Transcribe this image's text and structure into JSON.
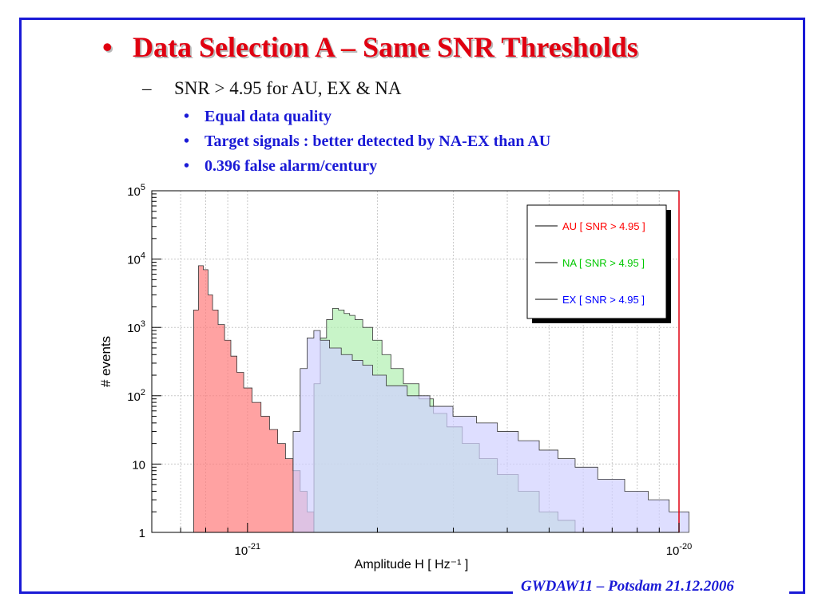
{
  "slide": {
    "title": "Data Selection A – Same SNR Thresholds",
    "subtitle": "SNR > 4.95 for AU, EX & NA",
    "bullets": [
      "Equal data quality",
      "Target signals : better detected by NA-EX than AU",
      "0.396 false alarm/century"
    ],
    "footer": "GWDAW11 – Potsdam 21.12.2006",
    "title_bullet": "•",
    "sub_dash": "–",
    "bullet_dot": "•"
  },
  "colors": {
    "frame": "#1a1ad6",
    "title": "#e00010",
    "bullet_text": "#1a1ad6",
    "au": "#ff0000",
    "na": "#00c800",
    "ex": "#0000ff"
  },
  "chart_data": {
    "type": "histogram",
    "xlabel": "Amplitude H [ Hz⁻¹ ]",
    "ylabel": "# events",
    "x_scale": "log",
    "y_scale": "log",
    "xlim": [
      6e-22,
      1e-20
    ],
    "ylim": [
      1,
      100000
    ],
    "grid": true,
    "legend_position": "top-right",
    "x_ticks": [
      {
        "value": 1e-21,
        "base": "10",
        "exp": "-21"
      },
      {
        "value": 1e-20,
        "base": "10",
        "exp": "-20"
      }
    ],
    "y_ticks": [
      {
        "value": 1,
        "base": "1",
        "exp": ""
      },
      {
        "value": 10,
        "base": "10",
        "exp": ""
      },
      {
        "value": 100,
        "base": "10",
        "exp": "2"
      },
      {
        "value": 1000,
        "base": "10",
        "exp": "3"
      },
      {
        "value": 10000,
        "base": "10",
        "exp": "4"
      },
      {
        "value": 100000,
        "base": "10",
        "exp": "5"
      }
    ],
    "series": [
      {
        "name": "AU [ SNR > 4.95 ]",
        "color": "#ff0000",
        "fill": "#ff7a7a",
        "x": [
          7.6e-22,
          7.8e-22,
          8e-22,
          8.2e-22,
          8.4e-22,
          8.7e-22,
          9e-22,
          9.3e-22,
          9.6e-22,
          1e-21,
          1.05e-21,
          1.1e-21,
          1.15e-21,
          1.2e-21,
          1.25e-21,
          1.3e-21,
          1.35e-21,
          1.4e-21,
          1.45e-21
        ],
        "values": [
          1800,
          8000,
          7000,
          3000,
          1800,
          1100,
          650,
          380,
          220,
          130,
          80,
          50,
          32,
          20,
          12,
          8,
          4,
          2,
          1
        ]
      },
      {
        "name": "NA [ SNR > 4.95 ]",
        "color": "#00c800",
        "fill": "#b0f0b0",
        "x": [
          1.45e-21,
          1.5e-21,
          1.55e-21,
          1.6e-21,
          1.65e-21,
          1.7e-21,
          1.75e-21,
          1.8e-21,
          1.9e-21,
          2e-21,
          2.1e-21,
          2.2e-21,
          2.4e-21,
          2.6e-21,
          2.8e-21,
          3e-21,
          3.3e-21,
          3.6e-21,
          4e-21,
          4.5e-21,
          5e-21,
          5.5e-21,
          6e-21
        ],
        "values": [
          150,
          700,
          1300,
          1900,
          1800,
          1600,
          1500,
          1300,
          1000,
          650,
          400,
          250,
          150,
          90,
          55,
          35,
          20,
          12,
          7,
          4,
          2,
          1.5,
          1
        ]
      },
      {
        "name": "EX [ SNR > 4.95 ]",
        "color": "#0000ff",
        "fill": "#d0d0ff",
        "x": [
          1.3e-21,
          1.35e-21,
          1.4e-21,
          1.45e-21,
          1.5e-21,
          1.6e-21,
          1.7e-21,
          1.8e-21,
          1.9e-21,
          2e-21,
          2.2e-21,
          2.5e-21,
          2.8e-21,
          3.2e-21,
          3.6e-21,
          4e-21,
          4.5e-21,
          5e-21,
          5.5e-21,
          6e-21,
          7e-21,
          8e-21,
          9e-21,
          1e-20
        ],
        "values": [
          30,
          250,
          700,
          900,
          650,
          500,
          400,
          330,
          280,
          200,
          140,
          100,
          70,
          50,
          40,
          30,
          22,
          16,
          12,
          9,
          6,
          4,
          3,
          2
        ]
      }
    ]
  }
}
